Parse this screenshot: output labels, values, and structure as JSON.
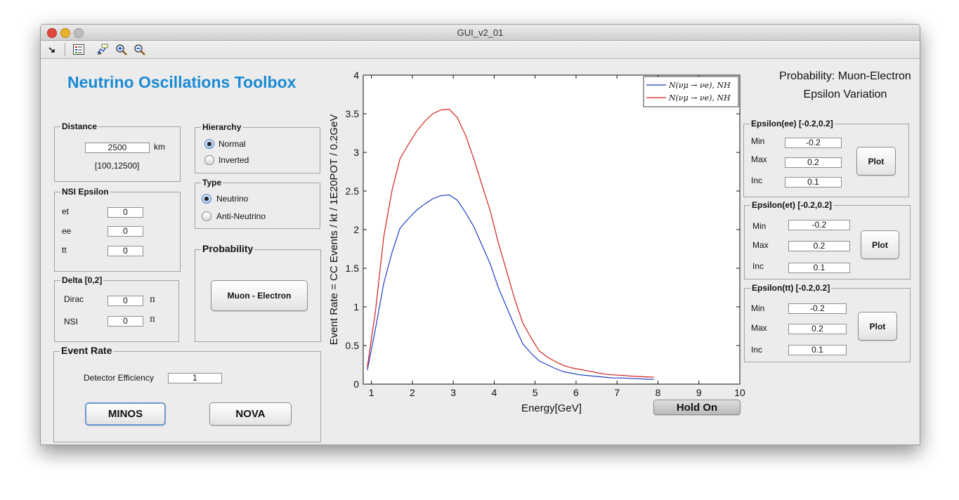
{
  "window": {
    "title": "GUI_v2_01"
  },
  "colors": {
    "accent": "#1a8ad4",
    "series1": "#1f3fc4",
    "series2": "#d42020"
  },
  "toolbar": {
    "icons": [
      "pointer-icon",
      "legend-icon",
      "data-cursor-icon",
      "zoom-in-icon",
      "zoom-out-icon"
    ]
  },
  "app": {
    "title": "Neutrino Oscillations Toolbox"
  },
  "distance": {
    "title": "Distance",
    "value": "2500",
    "unit": "km",
    "range": "[100,12500]"
  },
  "hierarchy": {
    "title": "Hierarchy",
    "options": [
      "Normal",
      "Inverted"
    ],
    "selected": "Normal"
  },
  "nsi": {
    "title": "NSI Epsilon",
    "et_label": "et",
    "et": "0",
    "ee_label": "ee",
    "ee": "0",
    "tt_label": "tt",
    "tt": "0"
  },
  "type": {
    "title": "Type",
    "options": [
      "Neutrino",
      "Anti-Neutrino"
    ],
    "selected": "Neutrino"
  },
  "probability_panel": {
    "title": "Probability",
    "button": "Muon - Electron"
  },
  "delta": {
    "title": "Delta [0,2]",
    "dirac_label": "Dirac",
    "dirac": "0",
    "nsi_label": "NSI",
    "nsi": "0",
    "pi": "π"
  },
  "event_rate": {
    "title": "Event Rate",
    "efficiency_label": "Detector Efficiency",
    "efficiency": "1",
    "minos": "MINOS",
    "nova": "NOVA"
  },
  "right": {
    "heading1": "Probability: Muon-Electron",
    "heading2": "Epsilon Variation",
    "min_label": "Min",
    "max_label": "Max",
    "inc_label": "Inc",
    "plot_label": "Plot",
    "ee": {
      "title": "Epsilon(ee) [-0.2,0.2]",
      "min": "-0.2",
      "max": "0.2",
      "inc": "0.1"
    },
    "et": {
      "title": "Epsilon(et) [-0.2,0.2]",
      "min": "-0.2",
      "max": "0.2",
      "inc": "0.1"
    },
    "tt": {
      "title": "Epsilon(tt) [-0.2,0.2]",
      "min": "-0.2",
      "max": "0.2",
      "inc": "0.1"
    }
  },
  "hold_on": "Hold On",
  "chart_data": {
    "type": "line",
    "xlabel": "Energy[GeV]",
    "ylabel": "Event Rate = CC Events / kt / 1E20POT / 0.2GeV",
    "xlim": [
      0.8,
      10
    ],
    "ylim": [
      0,
      4
    ],
    "xticks": [
      "1",
      "2",
      "3",
      "4",
      "5",
      "6",
      "7",
      "8",
      "9",
      "10"
    ],
    "yticks": [
      "0",
      "0.5",
      "1",
      "1.5",
      "2",
      "2.5",
      "3",
      "3.5",
      "4"
    ],
    "legend_position": "top-right",
    "grid": false,
    "x": [
      0.9,
      1.1,
      1.3,
      1.5,
      1.7,
      1.9,
      2.1,
      2.3,
      2.5,
      2.7,
      2.9,
      3.1,
      3.3,
      3.5,
      3.7,
      3.9,
      4.1,
      4.3,
      4.5,
      4.7,
      4.9,
      5.1,
      5.3,
      5.5,
      5.7,
      5.9,
      6.1,
      6.3,
      6.5,
      6.7,
      6.9,
      7.1,
      7.3,
      7.5,
      7.7,
      7.9
    ],
    "series": [
      {
        "name": "N(νμ → νe), NH",
        "color": "#1f3fc4",
        "values": [
          0.18,
          0.72,
          1.3,
          1.7,
          2.02,
          2.14,
          2.25,
          2.33,
          2.4,
          2.44,
          2.45,
          2.38,
          2.22,
          2.04,
          1.8,
          1.56,
          1.25,
          1.0,
          0.75,
          0.52,
          0.4,
          0.3,
          0.25,
          0.2,
          0.16,
          0.14,
          0.12,
          0.11,
          0.1,
          0.09,
          0.08,
          0.08,
          0.075,
          0.07,
          0.065,
          0.06
        ]
      },
      {
        "name": "N(νμ → νe), NH",
        "color": "#d42020",
        "values": [
          0.22,
          0.95,
          1.9,
          2.5,
          2.92,
          3.1,
          3.27,
          3.4,
          3.5,
          3.55,
          3.56,
          3.45,
          3.22,
          2.92,
          2.58,
          2.25,
          1.83,
          1.47,
          1.1,
          0.79,
          0.6,
          0.43,
          0.35,
          0.29,
          0.24,
          0.21,
          0.19,
          0.17,
          0.15,
          0.13,
          0.12,
          0.115,
          0.105,
          0.1,
          0.095,
          0.09
        ]
      }
    ]
  }
}
